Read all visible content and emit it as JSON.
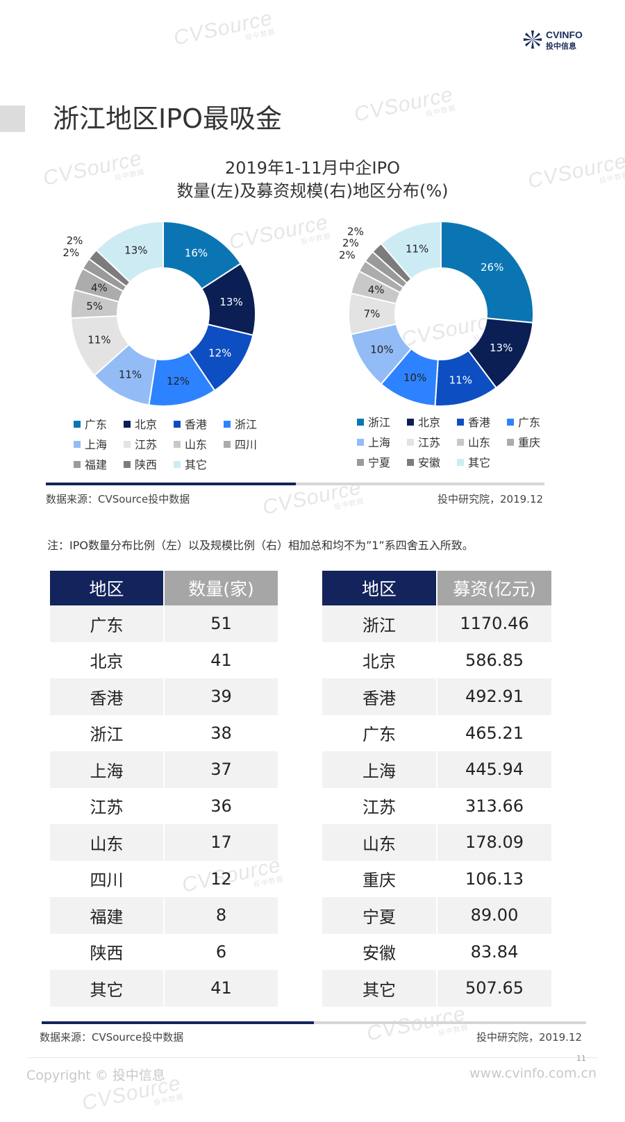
{
  "header": {
    "brand": "CVINFO",
    "brand_sub": "投中信息",
    "page_title": "浙江地区IPO最吸金"
  },
  "watermark": {
    "text": "CVSource",
    "sub": "投中数据"
  },
  "chart_title_line1": "2019年1-11月中企IPO",
  "chart_title_line2": "数量(左)及募资规模(右)地区分布(%)",
  "chart_data": [
    {
      "type": "pie",
      "categories": [
        "广东",
        "北京",
        "香港",
        "浙江",
        "上海",
        "江苏",
        "山东",
        "四川",
        "福建",
        "陕西",
        "其它"
      ],
      "values": [
        16,
        13,
        12,
        12,
        11,
        11,
        5,
        4,
        2,
        2,
        13
      ],
      "labels": [
        "16%",
        "13%",
        "12%",
        "12%",
        "11%",
        "11%",
        "5%",
        "4%",
        "2%",
        "2%",
        "13%"
      ],
      "colors": [
        "#0b75b3",
        "#0b1f55",
        "#0d4fc2",
        "#2d82ff",
        "#93bcf7",
        "#e3e3e3",
        "#c8c8c8",
        "#acacac",
        "#9a9a9a",
        "#7c7c7c",
        "#cdebf3"
      ],
      "label_colors": [
        "#ffffff",
        "#ffffff",
        "#ffffff",
        "#222222",
        "#222222",
        "#222222",
        "#222222",
        "#222222",
        "#222222",
        "#222222",
        "#222222"
      ],
      "legend_placement": "bottom"
    },
    {
      "type": "pie",
      "categories": [
        "浙江",
        "北京",
        "香港",
        "广东",
        "上海",
        "江苏",
        "山东",
        "重庆",
        "宁夏",
        "安徽",
        "其它"
      ],
      "values": [
        26,
        13,
        11,
        10,
        10,
        7,
        4,
        2,
        2,
        2,
        11
      ],
      "labels": [
        "26%",
        "13%",
        "11%",
        "10%",
        "10%",
        "7%",
        "4%",
        "2%",
        "2%",
        "2%",
        "11%"
      ],
      "colors": [
        "#0b75b3",
        "#0b1f55",
        "#0d4fc2",
        "#2d82ff",
        "#93bcf7",
        "#e3e3e3",
        "#c8c8c8",
        "#acacac",
        "#9a9a9a",
        "#7c7c7c",
        "#cdebf3"
      ],
      "label_colors": [
        "#ffffff",
        "#ffffff",
        "#ffffff",
        "#222222",
        "#222222",
        "#222222",
        "#222222",
        "#222222",
        "#222222",
        "#222222",
        "#222222"
      ],
      "legend_placement": "bottom"
    }
  ],
  "source_left": "数据来源：CVSource投中数据",
  "source_right": "投中研究院，2019.12",
  "note": "注：IPO数量分布比例（左）以及规模比例（右）相加总和均不为”1”系四舍五入所致。",
  "table_left": {
    "headers": [
      "地区",
      "数量(家)"
    ],
    "rows": [
      [
        "广东",
        "51"
      ],
      [
        "北京",
        "41"
      ],
      [
        "香港",
        "39"
      ],
      [
        "浙江",
        "38"
      ],
      [
        "上海",
        "37"
      ],
      [
        "江苏",
        "36"
      ],
      [
        "山东",
        "17"
      ],
      [
        "四川",
        "12"
      ],
      [
        "福建",
        "8"
      ],
      [
        "陕西",
        "6"
      ],
      [
        "其它",
        "41"
      ]
    ]
  },
  "table_right": {
    "headers": [
      "地区",
      "募资(亿元)"
    ],
    "rows": [
      [
        "浙江",
        "1170.46"
      ],
      [
        "北京",
        "586.85"
      ],
      [
        "香港",
        "492.91"
      ],
      [
        "广东",
        "465.21"
      ],
      [
        "上海",
        "445.94"
      ],
      [
        "江苏",
        "313.66"
      ],
      [
        "山东",
        "178.09"
      ],
      [
        "重庆",
        "106.13"
      ],
      [
        "宁夏",
        "89.00"
      ],
      [
        "安徽",
        "83.84"
      ],
      [
        "其它",
        "507.65"
      ]
    ]
  },
  "footer": {
    "copyright": "Copyright © 投中信息",
    "website": "www.cvinfo.com.cn",
    "page_number": "11"
  },
  "colors": {
    "navy": "#13235c",
    "table_header_gray": "#a6a6a6",
    "row_stripe": "#f2f2f2"
  }
}
